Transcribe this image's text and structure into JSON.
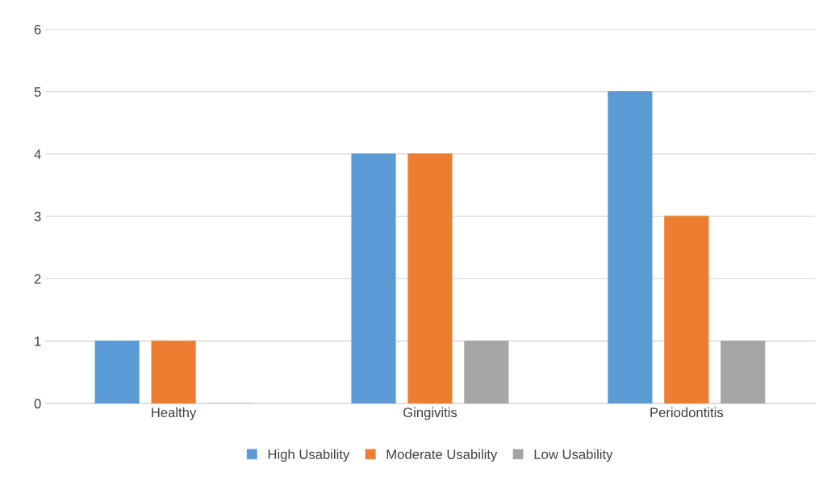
{
  "chart_data": {
    "type": "bar",
    "categories": [
      "Healthy",
      "Gingivitis",
      "Periodontitis"
    ],
    "series": [
      {
        "name": "High Usability",
        "color": "#5b9bd5",
        "values": [
          1,
          4,
          5
        ]
      },
      {
        "name": "Moderate Usability",
        "color": "#ed7d31",
        "values": [
          1,
          4,
          3
        ]
      },
      {
        "name": "Low Usability",
        "color": "#a5a5a5",
        "values": [
          0,
          1,
          1
        ]
      }
    ],
    "ylim": [
      0,
      6
    ],
    "yticks": [
      0,
      1,
      2,
      3,
      4,
      5,
      6
    ],
    "grid": "y",
    "legend": "bottom"
  }
}
